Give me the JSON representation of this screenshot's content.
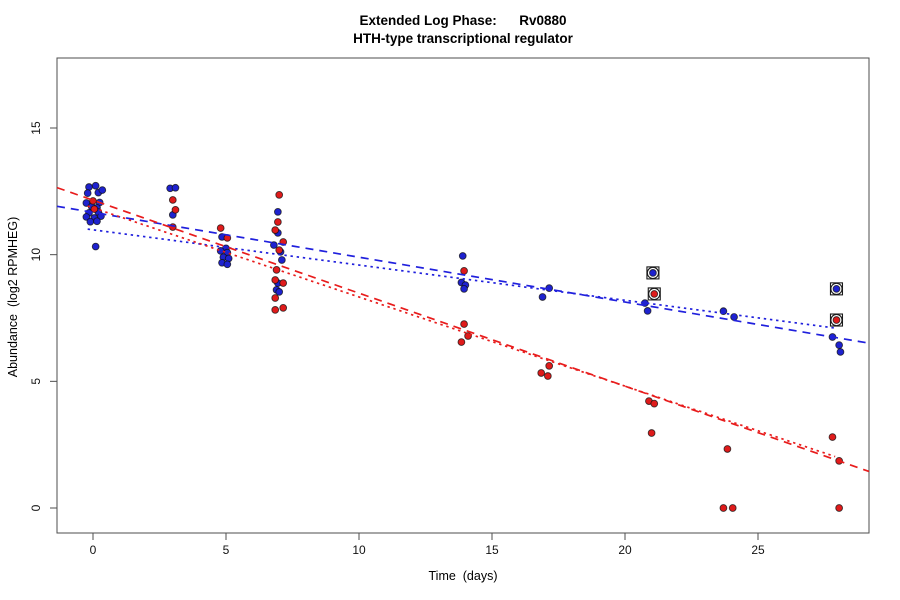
{
  "title": {
    "line1": "Extended Log Phase:      Rv0880",
    "line2": "HTH-type transcriptional regulator"
  },
  "axes": {
    "x": {
      "label": "Time  (days)",
      "ticks": [
        0,
        5,
        10,
        15,
        20,
        25
      ],
      "range_days": [
        -1.35,
        29.17
      ]
    },
    "y": {
      "label": "Abundance  (log2 RPMHEG)",
      "ticks": [
        0,
        5,
        10,
        15
      ],
      "range": [
        -1.0,
        17.8
      ]
    }
  },
  "colors": {
    "blue_point": "#1e22cf",
    "red_point": "#df1b1b",
    "blue_line": "#2020dd",
    "red_line": "#e81c1c",
    "frame": "#4d4d4d",
    "tick_text": "#111111",
    "flag_outline": "#1a1a1a"
  },
  "chart_data": {
    "type": "scatter",
    "x_units": "days",
    "y_units": "log2 RPMHEG",
    "series": [
      {
        "name": "blue-replicates",
        "color_key": "blue_point",
        "points": [
          [
            -0.15,
            12.67
          ],
          [
            0.1,
            12.72
          ],
          [
            -0.2,
            12.43
          ],
          [
            0.2,
            12.45
          ],
          [
            0.35,
            12.55
          ],
          [
            -0.25,
            12.04
          ],
          [
            0.25,
            12.06
          ],
          [
            -0.05,
            11.9
          ],
          [
            0.15,
            11.85
          ],
          [
            -0.15,
            11.65
          ],
          [
            0.2,
            11.68
          ],
          [
            -0.25,
            11.49
          ],
          [
            0.05,
            11.45
          ],
          [
            0.3,
            11.52
          ],
          [
            -0.1,
            11.3
          ],
          [
            0.15,
            11.32
          ],
          [
            0.1,
            10.32
          ],
          [
            2.9,
            12.62
          ],
          [
            3.1,
            12.64
          ],
          [
            3.0,
            11.57
          ],
          [
            4.85,
            10.7
          ],
          [
            5.0,
            10.25
          ],
          [
            4.8,
            10.15
          ],
          [
            5.05,
            10.08
          ],
          [
            4.9,
            9.9
          ],
          [
            5.1,
            9.85
          ],
          [
            4.85,
            9.68
          ],
          [
            5.05,
            9.62
          ],
          [
            6.95,
            11.69
          ],
          [
            6.95,
            10.86
          ],
          [
            6.8,
            10.38
          ],
          [
            7.05,
            10.11
          ],
          [
            7.1,
            9.79
          ],
          [
            6.95,
            8.88
          ],
          [
            6.9,
            8.61
          ],
          [
            7.0,
            8.53
          ],
          [
            13.9,
            9.95
          ],
          [
            13.85,
            8.9
          ],
          [
            14.0,
            8.8
          ],
          [
            13.95,
            8.65
          ],
          [
            17.15,
            8.68
          ],
          [
            16.9,
            8.33
          ],
          [
            20.75,
            8.09
          ],
          [
            20.85,
            7.78
          ],
          [
            23.7,
            7.77
          ],
          [
            24.1,
            7.54
          ],
          [
            27.8,
            6.75
          ],
          [
            28.05,
            6.43
          ],
          [
            28.1,
            6.16
          ]
        ]
      },
      {
        "name": "red-replicates",
        "color_key": "red_point",
        "points": [
          [
            0.0,
            12.12
          ],
          [
            0.05,
            11.8
          ],
          [
            3.0,
            12.16
          ],
          [
            3.1,
            11.77
          ],
          [
            3.0,
            11.09
          ],
          [
            4.8,
            11.05
          ],
          [
            5.05,
            10.66
          ],
          [
            7.0,
            12.36
          ],
          [
            6.95,
            11.29
          ],
          [
            6.85,
            10.97
          ],
          [
            7.15,
            10.5
          ],
          [
            7.0,
            10.18
          ],
          [
            6.9,
            9.4
          ],
          [
            6.85,
            9.0
          ],
          [
            7.15,
            8.88
          ],
          [
            6.85,
            8.29
          ],
          [
            7.15,
            7.9
          ],
          [
            6.85,
            7.82
          ],
          [
            13.95,
            9.36
          ],
          [
            13.95,
            7.26
          ],
          [
            14.1,
            6.79
          ],
          [
            13.85,
            6.55
          ],
          [
            17.15,
            5.61
          ],
          [
            16.85,
            5.33
          ],
          [
            17.1,
            5.21
          ],
          [
            20.9,
            4.22
          ],
          [
            21.1,
            4.12
          ],
          [
            21.0,
            2.96
          ],
          [
            23.85,
            2.33
          ],
          [
            23.7,
            0.0
          ],
          [
            24.05,
            0.0
          ],
          [
            27.8,
            2.8
          ],
          [
            28.05,
            1.86
          ],
          [
            28.05,
            0.0
          ]
        ]
      },
      {
        "name": "flagged-blue-points",
        "color_key": "blue_point",
        "marker": "dot-with-open-circle-and-square",
        "points": [
          [
            21.05,
            9.28
          ],
          [
            27.95,
            8.65
          ]
        ]
      },
      {
        "name": "flagged-red-points",
        "color_key": "red_point",
        "marker": "dot-with-open-circle-and-square",
        "points": [
          [
            21.1,
            8.45
          ],
          [
            27.95,
            7.42
          ]
        ]
      }
    ],
    "trend_lines": [
      {
        "name": "blue-dashed-fit",
        "color_key": "blue_line",
        "style": "dashed",
        "value_at_day0": 11.67,
        "slope_per_day": -0.177,
        "span": "full"
      },
      {
        "name": "blue-dotted-fit",
        "color_key": "blue_line",
        "style": "dotted",
        "value_at_day0": 10.98,
        "slope_per_day": -0.139,
        "span": "data",
        "day_start": -0.2,
        "day_end": 27.9
      },
      {
        "name": "red-dashed-fit",
        "color_key": "red_line",
        "style": "dashed",
        "value_at_day0": 12.15,
        "slope_per_day": -0.367,
        "span": "full"
      },
      {
        "name": "red-dotted-fit",
        "color_key": "red_line",
        "style": "dotted",
        "value_at_day0": 11.85,
        "slope_per_day": -0.352,
        "span": "data",
        "day_start": -0.2,
        "day_end": 27.9
      }
    ],
    "legend": "none",
    "grid": false
  }
}
